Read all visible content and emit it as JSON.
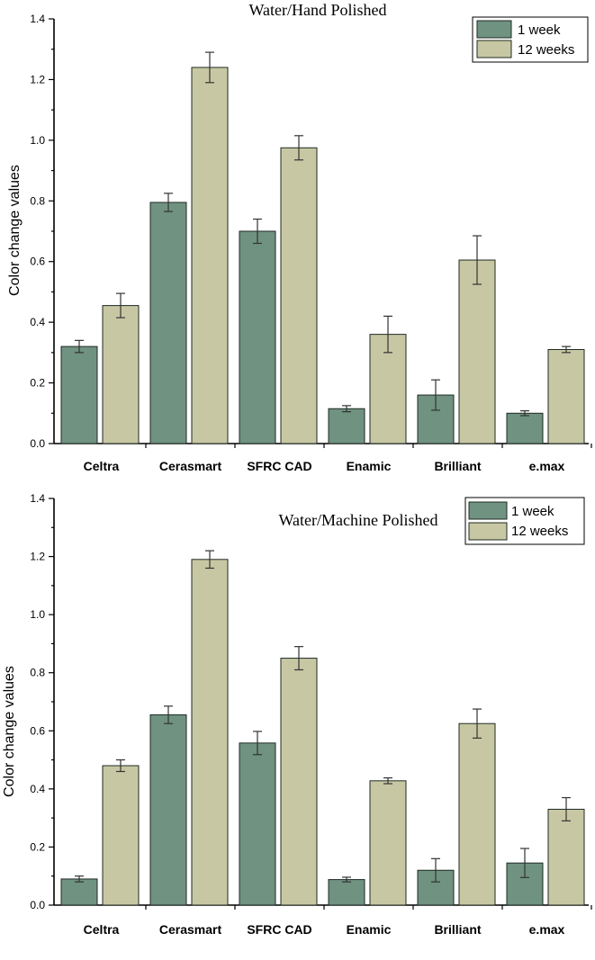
{
  "colors": {
    "series_1": "#6f9281",
    "series_2": "#c7c8a3"
  },
  "chart_data": [
    {
      "type": "bar",
      "title": "Water/Hand Polished",
      "xlabel": "",
      "ylabel": "Color change values",
      "ylim": [
        0,
        1.4
      ],
      "yticks": [
        "0.0",
        "0.2",
        "0.4",
        "0.6",
        "0.8",
        "1.0",
        "1.2",
        "1.4"
      ],
      "categories": [
        "Celtra",
        "Cerasmart",
        "SFRC CAD",
        "Enamic",
        "Brilliant",
        "e.max"
      ],
      "legend_position": "top-right",
      "series": [
        {
          "name": "1 week",
          "values": [
            0.32,
            0.795,
            0.7,
            0.115,
            0.16,
            0.1
          ],
          "errors": [
            0.02,
            0.03,
            0.04,
            0.01,
            0.05,
            0.008
          ]
        },
        {
          "name": "12 weeks",
          "values": [
            0.455,
            1.24,
            0.975,
            0.36,
            0.605,
            0.31
          ],
          "errors": [
            0.04,
            0.05,
            0.04,
            0.06,
            0.08,
            0.01
          ]
        }
      ]
    },
    {
      "type": "bar",
      "title": "Water/Machine Polished",
      "xlabel": "",
      "ylabel": "Color change values",
      "ylim": [
        0,
        1.4
      ],
      "yticks": [
        "0.0",
        "0.2",
        "0.4",
        "0.6",
        "0.8",
        "1.0",
        "1.2",
        "1.4"
      ],
      "categories": [
        "Celtra",
        "Cerasmart",
        "SFRC CAD",
        "Enamic",
        "Brilliant",
        "e.max"
      ],
      "legend_position": "top-right",
      "series": [
        {
          "name": "1 week",
          "values": [
            0.09,
            0.655,
            0.558,
            0.088,
            0.12,
            0.145
          ],
          "errors": [
            0.01,
            0.03,
            0.04,
            0.008,
            0.04,
            0.05
          ]
        },
        {
          "name": "12 weeks",
          "values": [
            0.48,
            1.19,
            0.85,
            0.428,
            0.625,
            0.33
          ],
          "errors": [
            0.02,
            0.03,
            0.04,
            0.01,
            0.05,
            0.04
          ]
        }
      ]
    }
  ]
}
